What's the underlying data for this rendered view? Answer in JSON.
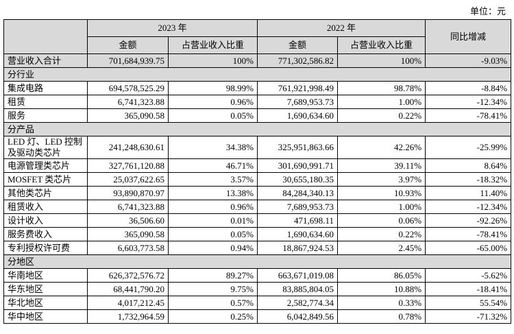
{
  "unit": "单位：元",
  "table": {
    "header": {
      "year_2023": "2023 年",
      "year_2022": "2022 年",
      "change": "同比增减",
      "amount_2023": "金额",
      "share_2023": "占营业收入比重",
      "amount_2022": "金额",
      "share_2022": "占营业收入比重"
    },
    "rows": [
      [
        "营业收入合计",
        "701,684,939.75",
        "100%",
        "771,302,586.82",
        "100%",
        "-9.03%"
      ],
      [
        "分行业"
      ],
      [
        "集成电路",
        "694,578,525.29",
        "98.99%",
        "761,921,998.49",
        "98.78%",
        "-8.84%"
      ],
      [
        "租赁",
        "6,741,323.88",
        "0.96%",
        "7,689,953.73",
        "1.00%",
        "-12.34%"
      ],
      [
        "服务",
        "365,090.58",
        "0.05%",
        "1,690,634.60",
        "0.22%",
        "-78.41%"
      ],
      [
        "分产品"
      ],
      [
        "LED 灯、LED 控制\n及驱动类芯片",
        "241,248,630.61",
        "34.38%",
        "325,951,863.66",
        "42.26%",
        "-25.99%"
      ],
      [
        "电源管理类芯片",
        "327,761,120.88",
        "46.71%",
        "301,690,991.71",
        "39.11%",
        "8.64%"
      ],
      [
        "MOSFET 类芯片",
        "25,037,622.65",
        "3.57%",
        "30,655,180.35",
        "3.97%",
        "-18.32%"
      ],
      [
        "其他类芯片",
        "93,890,870.97",
        "13.38%",
        "84,284,340.13",
        "10.93%",
        "11.40%"
      ],
      [
        "租赁收入",
        "6,741,323.88",
        "0.96%",
        "7,689,953.73",
        "1.00%",
        "-12.34%"
      ],
      [
        "设计收入",
        "36,506.60",
        "0.01%",
        "471,698.11",
        "0.06%",
        "-92.26%"
      ],
      [
        "服务费收入",
        "365,090.58",
        "0.05%",
        "1,690,634.60",
        "0.22%",
        "-78.41%"
      ],
      [
        "专利授权许可费",
        "6,603,773.58",
        "0.94%",
        "18,867,924.53",
        "2.45%",
        "-65.00%"
      ],
      [
        "分地区"
      ],
      [
        "华南地区",
        "626,372,576.72",
        "89.27%",
        "663,671,019.08",
        "86.05%",
        "-5.62%"
      ],
      [
        "华东地区",
        "68,441,790.20",
        "9.75%",
        "83,885,804.05",
        "10.88%",
        "-18.41%"
      ],
      [
        "华北地区",
        "4,017,212.45",
        "0.57%",
        "2,582,774.34",
        "0.33%",
        "55.54%"
      ],
      [
        "华中地区",
        "1,732,964.59",
        "0.25%",
        "6,042,849.56",
        "0.78%",
        "-71.32%"
      ]
    ]
  }
}
